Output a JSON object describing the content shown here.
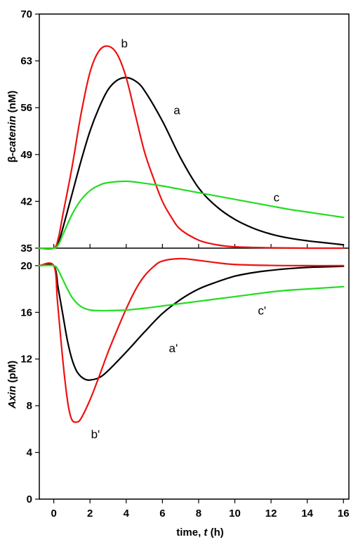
{
  "colors": {
    "a": "#000000",
    "b": "#ee1111",
    "c": "#22dd22"
  },
  "chart_data": [
    {
      "type": "line",
      "ylabel_prefix": "β-",
      "ylabel_italic": "catenin",
      "ylabel_suffix": " (nM)",
      "ylim": [
        35,
        70
      ],
      "yticks": [
        35,
        42,
        49,
        56,
        63,
        70
      ],
      "xlim": [
        -0.8,
        16.3
      ],
      "grid": false,
      "series": [
        {
          "name": "a",
          "color_key": "a",
          "x": [
            -0.8,
            0,
            0.25,
            0.5,
            1,
            1.5,
            2,
            2.5,
            3,
            3.5,
            4,
            4.5,
            5,
            6,
            7,
            8,
            9,
            10,
            11,
            12,
            13,
            14,
            15,
            16
          ],
          "y": [
            35,
            35,
            35.8,
            38,
            43,
            48,
            52.5,
            56,
            58.7,
            60.1,
            60.5,
            60,
            58.6,
            54,
            48.5,
            44,
            41.2,
            39.3,
            38,
            37.1,
            36.5,
            36.1,
            35.8,
            35.5
          ]
        },
        {
          "name": "b",
          "color_key": "b",
          "x": [
            -0.8,
            0,
            0.25,
            0.5,
            1,
            1.5,
            2,
            2.5,
            3,
            3.5,
            4,
            4.5,
            5,
            5.5,
            6,
            6.5,
            7,
            8,
            9,
            10,
            12,
            14,
            16
          ],
          "y": [
            35,
            35,
            36.5,
            40,
            47,
            55,
            61.3,
            64.5,
            65.2,
            64,
            60.5,
            55,
            49.5,
            45.5,
            42,
            39.6,
            37.8,
            36.2,
            35.5,
            35.2,
            35.05,
            35,
            35
          ]
        },
        {
          "name": "c",
          "color_key": "c",
          "x": [
            -0.8,
            0,
            0.25,
            0.5,
            1,
            1.5,
            2,
            2.5,
            3,
            4,
            5,
            6,
            7,
            8,
            9,
            10,
            11,
            12,
            13,
            14,
            15,
            16
          ],
          "y": [
            35,
            35,
            35.5,
            37,
            40,
            42.2,
            43.6,
            44.4,
            44.8,
            45,
            44.7,
            44.3,
            43.8,
            43.3,
            42.8,
            42.3,
            41.8,
            41.3,
            40.8,
            40.4,
            40,
            39.6
          ]
        }
      ],
      "annotations": [
        {
          "text": "a",
          "x": 6.8,
          "y": 55
        },
        {
          "text": "b",
          "x": 3.9,
          "y": 65
        },
        {
          "text": "c",
          "x": 12.3,
          "y": 42
        }
      ]
    },
    {
      "type": "line",
      "ylabel_italic": "Axin",
      "ylabel_suffix": " (pM)",
      "ylim": [
        0,
        21.5
      ],
      "yticks": [
        0,
        4,
        8,
        12,
        16,
        20
      ],
      "xlim": [
        -0.8,
        16.3
      ],
      "xticks": [
        0,
        2,
        4,
        6,
        8,
        10,
        12,
        14,
        16
      ],
      "xlabel_prefix": "time, ",
      "xlabel_italic": "t",
      "xlabel_suffix": " (h)",
      "grid": false,
      "series": [
        {
          "name": "a'",
          "color_key": "a",
          "x": [
            -0.8,
            0,
            0.25,
            0.5,
            0.75,
            1,
            1.25,
            1.5,
            1.75,
            2,
            2.5,
            3,
            4,
            5,
            6,
            7,
            8,
            9,
            10,
            11,
            12,
            13,
            14,
            15,
            16
          ],
          "y": [
            20,
            20,
            18,
            15.8,
            13.6,
            12,
            11,
            10.5,
            10.25,
            10.2,
            10.4,
            11,
            12.6,
            14.3,
            15.9,
            17.1,
            18,
            18.6,
            19.1,
            19.4,
            19.6,
            19.75,
            19.85,
            19.9,
            19.95
          ]
        },
        {
          "name": "b'",
          "color_key": "b",
          "x": [
            -0.8,
            0,
            0.2,
            0.4,
            0.6,
            0.8,
            1,
            1.25,
            1.5,
            2,
            2.5,
            3,
            3.5,
            4,
            4.5,
            5,
            5.5,
            6,
            7,
            8,
            9,
            10,
            12,
            14,
            16
          ],
          "y": [
            20,
            20,
            17,
            13.5,
            10.4,
            8,
            6.8,
            6.6,
            6.9,
            8.5,
            10.5,
            12.6,
            14.5,
            16.3,
            17.9,
            19.1,
            19.9,
            20.4,
            20.6,
            20.45,
            20.25,
            20.1,
            20.02,
            20,
            20
          ]
        },
        {
          "name": "c'",
          "color_key": "c",
          "x": [
            -0.8,
            0,
            0.25,
            0.5,
            1,
            1.5,
            2,
            2.5,
            3,
            4,
            5,
            6,
            7,
            8,
            9,
            10,
            11,
            12,
            13,
            14,
            15,
            16
          ],
          "y": [
            20,
            20,
            19.6,
            18.8,
            17.3,
            16.5,
            16.2,
            16.15,
            16.15,
            16.2,
            16.35,
            16.55,
            16.75,
            16.95,
            17.15,
            17.35,
            17.55,
            17.75,
            17.9,
            18.0,
            18.1,
            18.2
          ]
        }
      ],
      "annotations": [
        {
          "text": "a'",
          "x": 6.6,
          "y": 12.6
        },
        {
          "text": "b'",
          "x": 2.3,
          "y": 5.2
        },
        {
          "text": "c'",
          "x": 11.5,
          "y": 15.8
        }
      ]
    }
  ]
}
